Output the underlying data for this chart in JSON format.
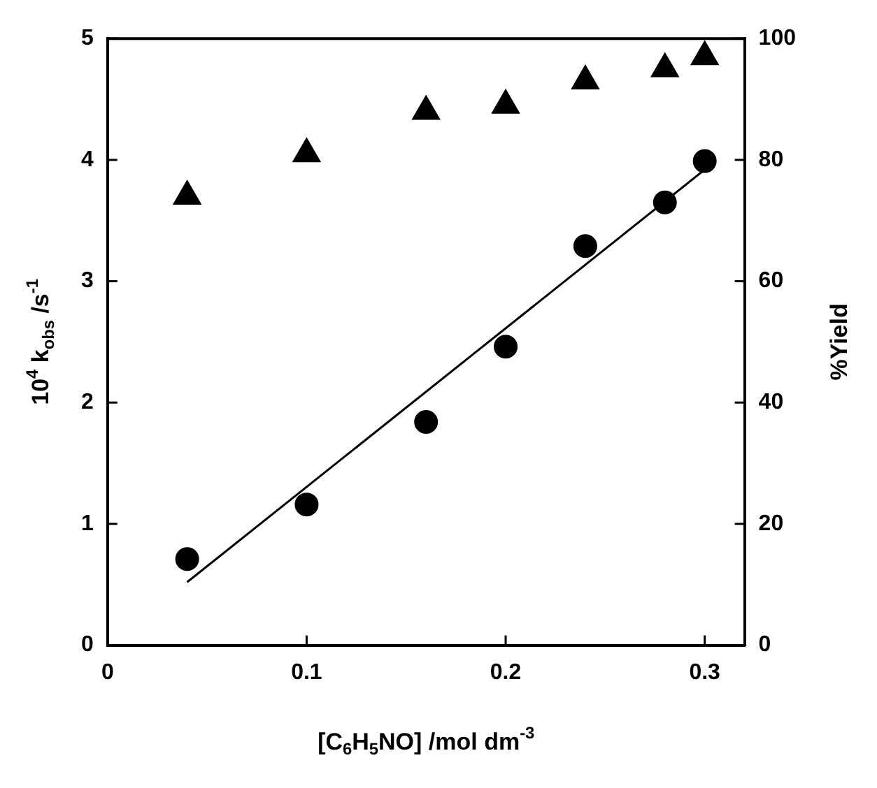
{
  "chart_data": {
    "type": "scatter",
    "xlabel": "[C$_{6}$H$_{5}$NO] /mol dm$^{-3}$",
    "ylabel": "10$^{4}$ k$_{obs}$ /s$^{-1}$",
    "y2label": "%Yield",
    "xlim": [
      0,
      0.32
    ],
    "xticks": [
      0,
      0.1,
      0.2,
      0.3
    ],
    "ylim": [
      0,
      5
    ],
    "yticks": [
      0,
      1,
      2,
      3,
      4,
      5
    ],
    "y2lim": [
      0,
      100
    ],
    "y2ticks": [
      0,
      20,
      40,
      60,
      80,
      100
    ],
    "grid": false,
    "legend": false,
    "series": [
      {
        "marker": "circle",
        "color": "#000000",
        "x": [
          0.04,
          0.1,
          0.16,
          0.2,
          0.24,
          0.28,
          0.3
        ],
        "values": [
          0.71,
          1.16,
          1.84,
          2.46,
          3.29,
          3.65,
          3.99
        ]
      },
      {
        "type": "line",
        "marker": "none",
        "line_style": "solid",
        "color": "#000000",
        "x": [
          0.04,
          0.3
        ],
        "values": [
          0.52,
          3.92
        ]
      },
      {
        "marker": "triangle",
        "axis": "y2",
        "color": "#000000",
        "x": [
          0.04,
          0.1,
          0.16,
          0.2,
          0.24,
          0.28,
          0.3
        ],
        "values": [
          74,
          81,
          88,
          89,
          93,
          95,
          97
        ]
      }
    ]
  }
}
